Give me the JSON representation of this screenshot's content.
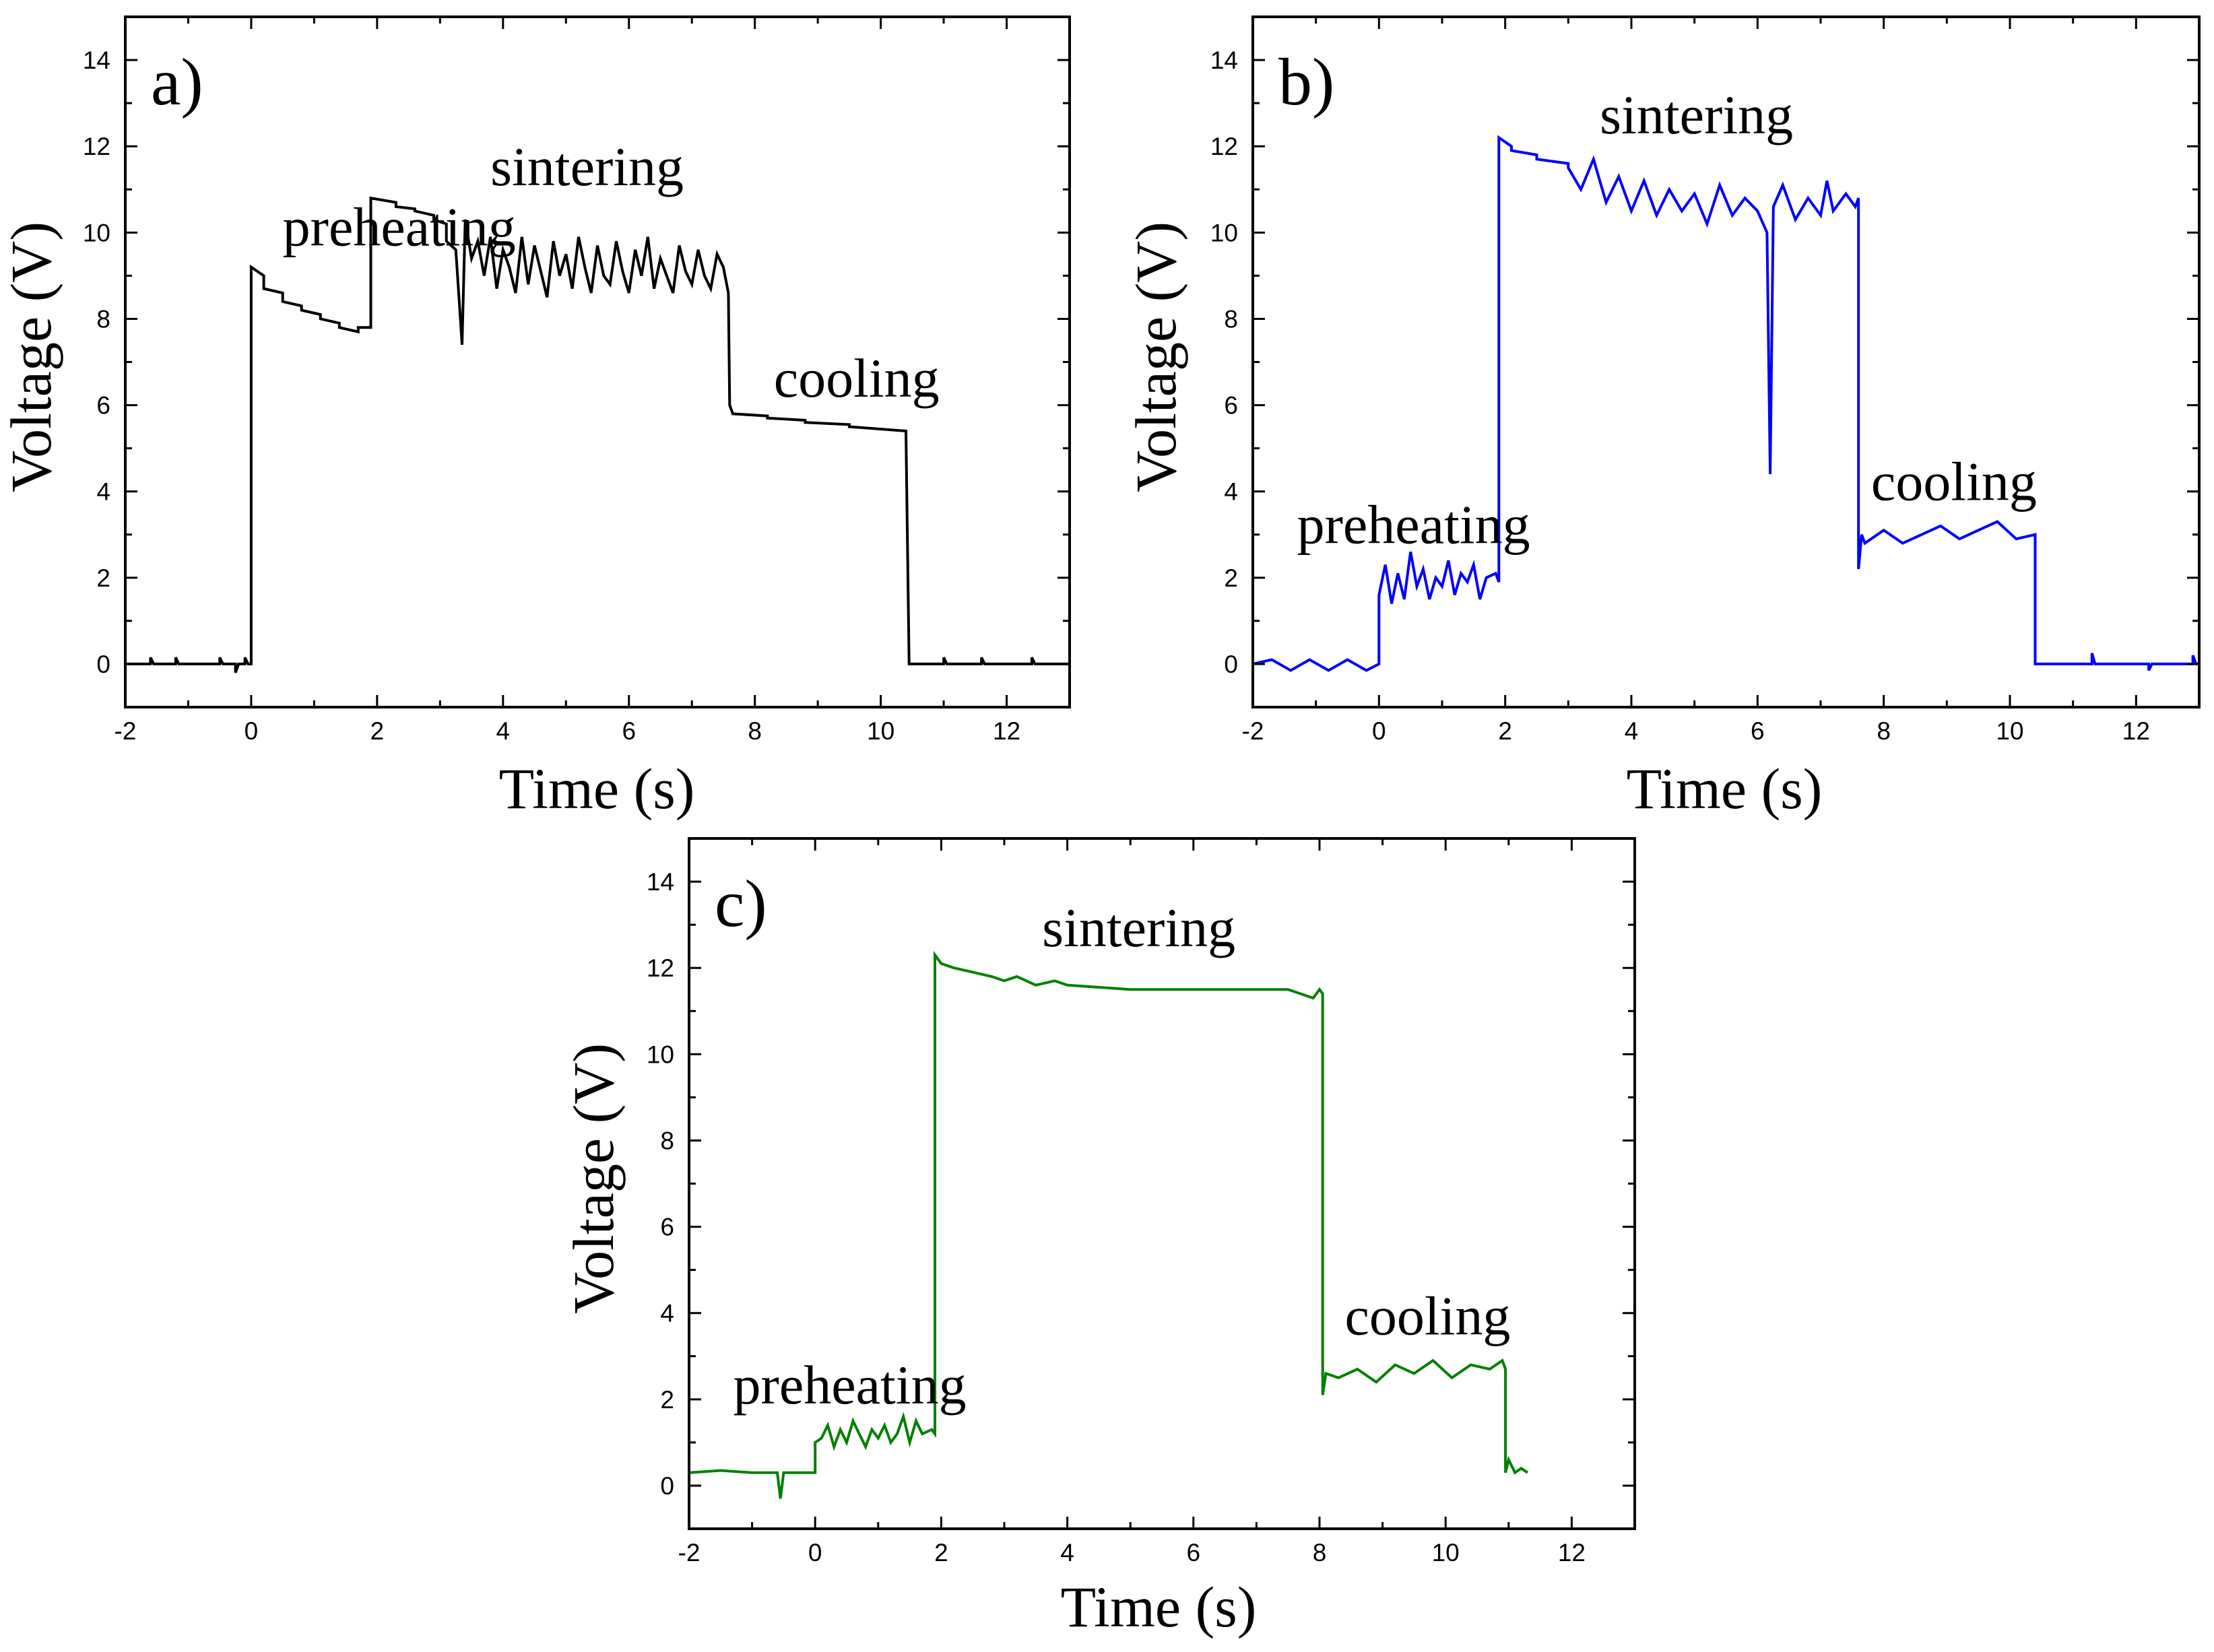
{
  "chart_data": [
    {
      "type": "line",
      "panel_label": "a)",
      "xlabel": "Time (s)",
      "ylabel": "Voltage (V)",
      "xlim": [
        -2,
        13
      ],
      "ylim": [
        -1,
        15
      ],
      "xticks": [
        -2,
        0,
        2,
        4,
        6,
        8,
        10,
        12
      ],
      "yticks": [
        0,
        2,
        4,
        6,
        8,
        10,
        12,
        14
      ],
      "grid": false,
      "color": "#000000",
      "annotations": [
        {
          "text": "preheating",
          "x": 0.5,
          "y": 9.7
        },
        {
          "text": "sintering",
          "x": 3.8,
          "y": 11.1
        },
        {
          "text": "cooling",
          "x": 8.3,
          "y": 6.2
        }
      ],
      "series": [
        {
          "x": [
            -2.0,
            -1.6,
            -1.6,
            -1.55,
            -1.2,
            -1.2,
            -1.15,
            -0.5,
            -0.5,
            -0.45,
            -0.25,
            -0.25,
            -0.2,
            -0.1,
            -0.1,
            -0.05,
            0.0,
            0.0,
            0.2,
            0.2,
            0.5,
            0.5,
            0.8,
            0.8,
            1.1,
            1.1,
            1.4,
            1.4,
            1.7,
            1.7,
            1.9,
            1.9,
            2.3,
            2.3,
            2.6,
            2.6,
            2.9,
            2.9,
            3.1,
            3.1,
            3.25,
            3.3,
            3.35,
            3.4,
            3.5,
            3.6,
            3.7,
            3.8,
            3.9,
            4.0,
            4.1,
            4.2,
            4.3,
            4.4,
            4.5,
            4.6,
            4.7,
            4.8,
            4.9,
            5.0,
            5.1,
            5.2,
            5.3,
            5.4,
            5.5,
            5.6,
            5.7,
            5.8,
            5.9,
            6.0,
            6.1,
            6.2,
            6.3,
            6.4,
            6.5,
            6.6,
            6.7,
            6.8,
            6.9,
            7.0,
            7.1,
            7.2,
            7.3,
            7.4,
            7.5,
            7.58,
            7.6,
            7.65,
            7.65,
            8.2,
            8.2,
            8.8,
            8.8,
            9.5,
            9.5,
            10.4,
            10.45,
            10.45,
            11.0,
            11.0,
            11.05,
            11.6,
            11.6,
            11.65,
            12.4,
            12.4,
            12.45,
            13.0
          ],
          "values": [
            0.0,
            0.0,
            0.15,
            0.0,
            0.0,
            0.15,
            0.0,
            0.0,
            0.15,
            0.0,
            0.0,
            -0.2,
            0.0,
            0.0,
            0.15,
            0.0,
            0.0,
            9.2,
            9.0,
            8.7,
            8.6,
            8.4,
            8.3,
            8.2,
            8.1,
            8.0,
            7.9,
            7.8,
            7.7,
            7.8,
            7.8,
            10.8,
            10.7,
            10.6,
            10.55,
            10.5,
            10.4,
            10.3,
            10.2,
            9.8,
            9.6,
            8.5,
            7.4,
            10.3,
            9.4,
            9.8,
            9.0,
            9.9,
            8.7,
            9.6,
            9.2,
            8.6,
            9.9,
            8.8,
            9.7,
            9.1,
            8.5,
            9.8,
            9.0,
            9.5,
            8.7,
            9.9,
            9.2,
            8.6,
            9.7,
            9.0,
            8.8,
            9.8,
            9.1,
            8.6,
            9.6,
            9.0,
            9.9,
            8.7,
            9.4,
            9.0,
            8.6,
            9.7,
            9.1,
            8.8,
            9.6,
            9.0,
            8.7,
            9.5,
            9.2,
            8.6,
            6.0,
            5.8,
            5.8,
            5.75,
            5.7,
            5.65,
            5.6,
            5.55,
            5.5,
            5.4,
            0.0,
            0.0,
            0.0,
            0.15,
            0.0,
            0.0,
            0.15,
            0.0,
            0.0,
            0.15,
            0.0,
            0.0
          ]
        }
      ]
    },
    {
      "type": "line",
      "panel_label": "b)",
      "xlabel": "Time (s)",
      "ylabel": "Voltage (V)",
      "xlim": [
        -2,
        13
      ],
      "ylim": [
        -1,
        15
      ],
      "xticks": [
        -2,
        0,
        2,
        4,
        6,
        8,
        10,
        12
      ],
      "yticks": [
        0,
        2,
        4,
        6,
        8,
        10,
        12,
        14
      ],
      "grid": false,
      "color": "#0000ff",
      "annotations": [
        {
          "text": "preheating",
          "x": -1.3,
          "y": 2.8
        },
        {
          "text": "sintering",
          "x": 3.5,
          "y": 12.3
        },
        {
          "text": "cooling",
          "x": 7.8,
          "y": 3.8
        }
      ],
      "series": [
        {
          "x": [
            -2.0,
            -1.7,
            -1.4,
            -1.1,
            -0.8,
            -0.5,
            -0.2,
            0.0,
            0.0,
            0.1,
            0.2,
            0.3,
            0.4,
            0.5,
            0.6,
            0.7,
            0.8,
            0.9,
            1.0,
            1.1,
            1.2,
            1.3,
            1.4,
            1.5,
            1.6,
            1.7,
            1.85,
            1.9,
            1.9,
            2.1,
            2.1,
            2.5,
            2.5,
            3.0,
            3.0,
            3.2,
            3.4,
            3.6,
            3.8,
            4.0,
            4.2,
            4.4,
            4.6,
            4.8,
            5.0,
            5.2,
            5.4,
            5.6,
            5.8,
            6.0,
            6.15,
            6.2,
            6.25,
            6.4,
            6.6,
            6.8,
            7.0,
            7.1,
            7.2,
            7.4,
            7.55,
            7.6,
            7.6,
            7.65,
            7.7,
            8.0,
            8.3,
            8.6,
            8.9,
            9.2,
            9.5,
            9.8,
            10.1,
            10.4,
            10.4,
            10.45,
            11.3,
            11.3,
            11.35,
            11.4,
            12.2,
            12.2,
            12.25,
            12.9,
            12.9,
            12.95,
            13.0
          ],
          "values": [
            0.0,
            0.1,
            -0.15,
            0.1,
            -0.15,
            0.1,
            -0.15,
            0.0,
            1.6,
            2.3,
            1.4,
            2.1,
            1.5,
            2.6,
            1.8,
            2.2,
            1.5,
            2.0,
            1.8,
            2.4,
            1.6,
            2.1,
            1.9,
            2.3,
            1.5,
            2.0,
            2.1,
            1.9,
            12.2,
            12.0,
            11.9,
            11.8,
            11.7,
            11.6,
            11.5,
            11.0,
            11.7,
            10.7,
            11.3,
            10.5,
            11.2,
            10.4,
            11.0,
            10.5,
            10.9,
            10.2,
            11.1,
            10.4,
            10.8,
            10.5,
            10.0,
            4.4,
            10.6,
            11.1,
            10.3,
            10.8,
            10.4,
            11.2,
            10.5,
            10.9,
            10.6,
            10.8,
            2.2,
            3.0,
            2.8,
            3.1,
            2.8,
            3.0,
            3.2,
            2.9,
            3.1,
            3.3,
            2.9,
            3.0,
            0.0,
            0.0,
            0.0,
            0.25,
            0.0,
            0.0,
            0.0,
            -0.15,
            0.0,
            0.0,
            0.2,
            0.0,
            0.0
          ]
        }
      ]
    },
    {
      "type": "line",
      "panel_label": "c)",
      "xlabel": "Time (s)",
      "ylabel": "Voltage (V)",
      "xlim": [
        -2,
        13
      ],
      "ylim": [
        -1,
        15
      ],
      "xticks": [
        -2,
        0,
        2,
        4,
        6,
        8,
        10,
        12
      ],
      "yticks": [
        0,
        2,
        4,
        6,
        8,
        10,
        12,
        14
      ],
      "grid": false,
      "color": "#008000",
      "annotations": [
        {
          "text": "preheating",
          "x": -1.3,
          "y": 1.9
        },
        {
          "text": "sintering",
          "x": 3.6,
          "y": 12.5
        },
        {
          "text": "cooling",
          "x": 8.4,
          "y": 3.5
        }
      ],
      "series": [
        {
          "x": [
            -2.0,
            -1.5,
            -1.0,
            -0.6,
            -0.55,
            -0.5,
            0.0,
            0.0,
            0.1,
            0.2,
            0.3,
            0.4,
            0.5,
            0.6,
            0.7,
            0.8,
            0.9,
            1.0,
            1.1,
            1.2,
            1.3,
            1.4,
            1.5,
            1.6,
            1.7,
            1.85,
            1.9,
            1.9,
            2.0,
            2.2,
            2.5,
            2.8,
            3.0,
            3.2,
            3.5,
            3.8,
            4.0,
            4.5,
            5.0,
            5.5,
            6.0,
            6.5,
            7.0,
            7.5,
            7.9,
            8.0,
            8.05,
            8.05,
            8.1,
            8.3,
            8.6,
            8.9,
            9.2,
            9.5,
            9.8,
            10.1,
            10.4,
            10.7,
            10.9,
            10.95,
            10.95,
            11.0,
            11.1,
            11.2,
            11.3
          ],
          "values": [
            0.3,
            0.35,
            0.3,
            0.3,
            -0.3,
            0.3,
            0.3,
            1.0,
            1.1,
            1.4,
            0.9,
            1.3,
            1.0,
            1.5,
            1.2,
            0.9,
            1.3,
            1.1,
            1.4,
            1.0,
            1.2,
            1.6,
            1.0,
            1.5,
            1.2,
            1.3,
            1.2,
            12.3,
            12.1,
            12.0,
            11.9,
            11.8,
            11.7,
            11.8,
            11.6,
            11.7,
            11.6,
            11.55,
            11.5,
            11.5,
            11.5,
            11.5,
            11.5,
            11.5,
            11.3,
            11.5,
            11.4,
            2.1,
            2.6,
            2.5,
            2.7,
            2.4,
            2.8,
            2.6,
            2.9,
            2.5,
            2.8,
            2.7,
            2.9,
            2.7,
            0.3,
            0.6,
            0.3,
            0.4,
            0.3
          ]
        }
      ]
    }
  ]
}
